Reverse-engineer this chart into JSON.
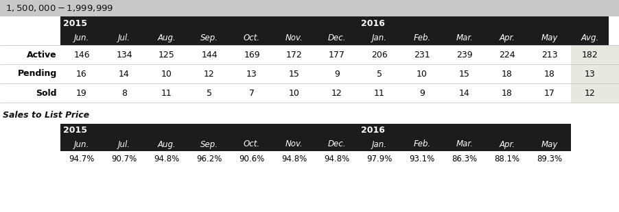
{
  "title": "$1,500,000 - $1,999,999",
  "title_bg": "#c8c8c8",
  "header_bg": "#1c1c1c",
  "header_text_color": "#ffffff",
  "month_headers": [
    "Jun.",
    "Jul.",
    "Aug.",
    "Sep.",
    "Oct.",
    "Nov.",
    "Dec.",
    "Jan.",
    "Feb.",
    "Mar.",
    "Apr.",
    "May",
    "Avg."
  ],
  "year_2015_label": "2015",
  "year_2016_label": "2016",
  "row_labels": [
    "Active",
    "Pending",
    "Sold"
  ],
  "active_values": [
    "146",
    "134",
    "125",
    "144",
    "169",
    "172",
    "177",
    "206",
    "231",
    "239",
    "224",
    "213",
    "182"
  ],
  "pending_values": [
    "16",
    "14",
    "10",
    "12",
    "13",
    "15",
    "9",
    "5",
    "10",
    "15",
    "18",
    "18",
    "13"
  ],
  "sold_values": [
    "19",
    "8",
    "11",
    "5",
    "7",
    "10",
    "12",
    "11",
    "9",
    "14",
    "18",
    "17",
    "12"
  ],
  "avg_col_bg": "#e8e8e0",
  "section2_title": "Sales to List Price",
  "s2_months": [
    "Jun.",
    "Jul.",
    "Aug.",
    "Sep.",
    "Oct.",
    "Nov.",
    "Dec.",
    "Jan.",
    "Feb.",
    "Mar.",
    "Apr.",
    "May"
  ],
  "s2_values": [
    "94.7%",
    "90.7%",
    "94.8%",
    "96.2%",
    "90.6%",
    "94.8%",
    "94.8%",
    "97.9%",
    "93.1%",
    "86.3%",
    "88.1%",
    "89.3%"
  ],
  "fig_width": 9.03,
  "fig_height": 3.1,
  "fig_dpi": 100
}
